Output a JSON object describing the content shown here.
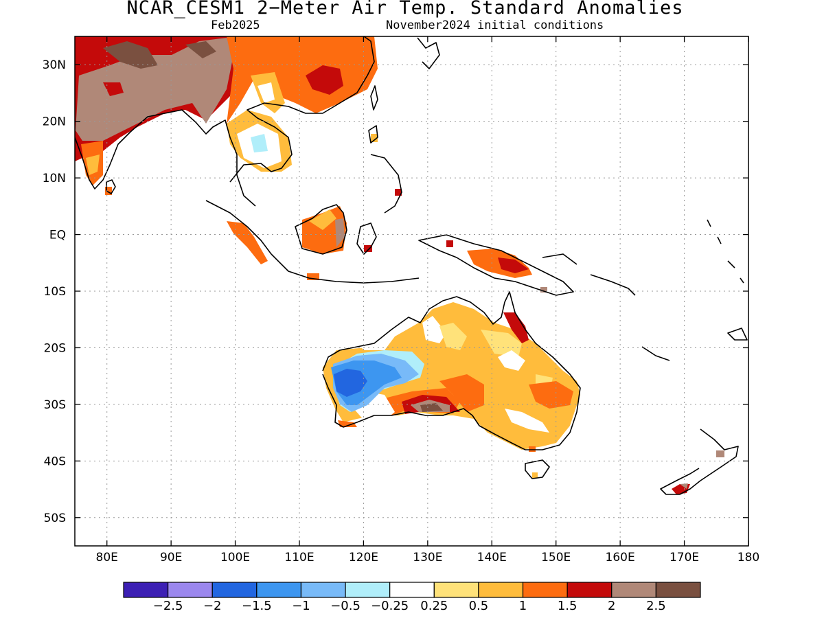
{
  "title": "NCAR_CESM1 2−Meter Air Temp. Standard Anomalies",
  "subtitle_left": "Feb2025",
  "subtitle_right": "November2024 initial conditions",
  "map": {
    "lon_range": [
      75,
      180
    ],
    "lat_range": [
      -55,
      35
    ],
    "lon_ticks": [
      "80E",
      "90E",
      "100E",
      "110E",
      "120E",
      "130E",
      "140E",
      "150E",
      "160E",
      "170E",
      "180"
    ],
    "lat_ticks": [
      "30N",
      "20N",
      "10N",
      "EQ",
      "10S",
      "20S",
      "30S",
      "40S",
      "50S"
    ]
  },
  "colorbar": {
    "colors": [
      "#3c1fb4",
      "#9b87ee",
      "#2266e0",
      "#3d96f0",
      "#78baf8",
      "#b0eefa",
      "#ffffff",
      "#ffe27a",
      "#ffbc3c",
      "#fd6c10",
      "#c40a0a",
      "#b08878",
      "#7a5040"
    ],
    "labels": [
      "−2.5",
      "−2",
      "−1.5",
      "−1",
      "−0.5",
      "−0.25",
      "0.25",
      "0.5",
      "1",
      "1.5",
      "2",
      "2.5"
    ]
  }
}
